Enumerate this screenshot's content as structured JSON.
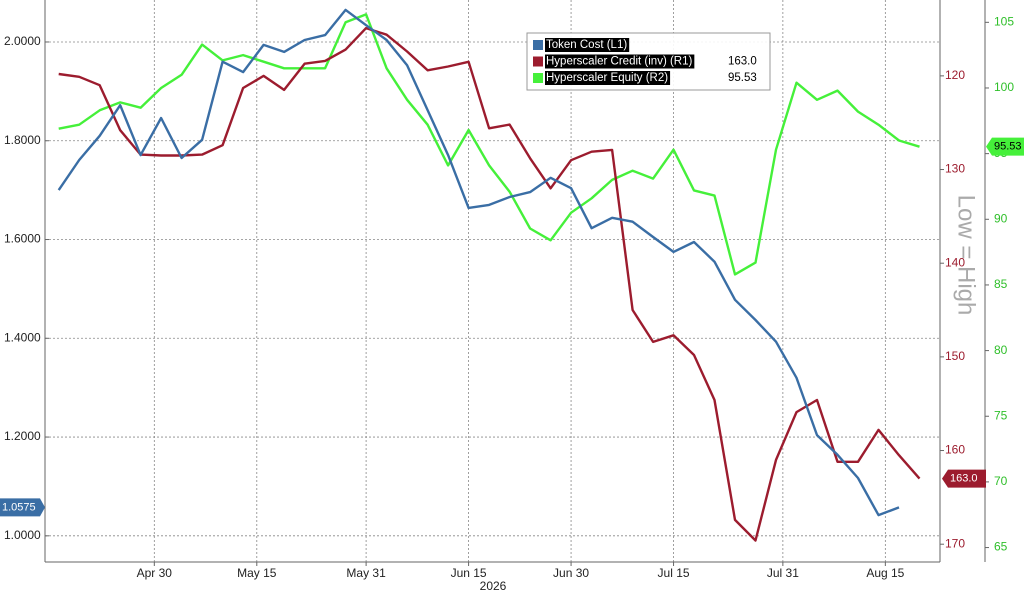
{
  "chart_data": {
    "type": "line",
    "xlabel": "2026",
    "y2_annotation": "Low = High",
    "x": [
      "2026-04-16",
      "2026-04-19",
      "2026-04-22",
      "2026-04-25",
      "2026-04-28",
      "2026-05-01",
      "2026-05-04",
      "2026-05-07",
      "2026-05-10",
      "2026-05-13",
      "2026-05-16",
      "2026-05-19",
      "2026-05-22",
      "2026-05-25",
      "2026-05-28",
      "2026-05-31",
      "2026-06-03",
      "2026-06-06",
      "2026-06-09",
      "2026-06-12",
      "2026-06-15",
      "2026-06-18",
      "2026-06-21",
      "2026-06-24",
      "2026-06-27",
      "2026-06-30",
      "2026-07-03",
      "2026-07-06",
      "2026-07-09",
      "2026-07-12",
      "2026-07-15",
      "2026-07-18",
      "2026-07-21",
      "2026-07-24",
      "2026-07-27",
      "2026-07-30",
      "2026-08-02",
      "2026-08-05",
      "2026-08-08",
      "2026-08-11",
      "2026-08-14",
      "2026-08-17",
      "2026-08-20"
    ],
    "xlim": [
      "2026-04-14",
      "2026-08-23"
    ],
    "xticks": [
      {
        "value": "2026-04-30",
        "label": "Apr 30"
      },
      {
        "value": "2026-05-15",
        "label": "May 15"
      },
      {
        "value": "2026-05-31",
        "label": "May 31"
      },
      {
        "value": "2026-06-15",
        "label": "Jun 15"
      },
      {
        "value": "2026-06-30",
        "label": "Jun 30"
      },
      {
        "value": "2026-07-15",
        "label": "Jul 15"
      },
      {
        "value": "2026-07-31",
        "label": "Jul 31"
      },
      {
        "value": "2026-08-15",
        "label": "Aug 15"
      }
    ],
    "ylim": [
      0.947,
      2.085
    ],
    "yticks": [
      {
        "value": 1.0,
        "label": "1.0000"
      },
      {
        "value": 1.2,
        "label": "1.2000"
      },
      {
        "value": 1.4,
        "label": "1.4000"
      },
      {
        "value": 1.6,
        "label": "1.6000"
      },
      {
        "value": 1.8,
        "label": "1.8000"
      },
      {
        "value": 2.0,
        "label": "2.0000"
      }
    ],
    "y2lim": [
      171.9,
      111.9
    ],
    "y2ticks": [
      120,
      130,
      140,
      150,
      160,
      170
    ],
    "y3lim": [
      63.9,
      106.7
    ],
    "y3ticks": [
      65,
      70,
      75,
      80,
      85,
      90,
      95,
      100,
      105
    ],
    "grid": true,
    "series": [
      {
        "name": "Token Cost (L1)",
        "color": "#3a6ea5",
        "axis": "y",
        "values": [
          1.7,
          1.761,
          1.81,
          1.872,
          1.771,
          1.846,
          1.765,
          1.802,
          1.96,
          1.939,
          1.994,
          1.98,
          2.004,
          2.014,
          2.065,
          2.034,
          2.004,
          1.953,
          1.862,
          1.771,
          1.664,
          1.67,
          1.686,
          1.696,
          1.725,
          1.704,
          1.623,
          1.644,
          1.636,
          1.605,
          1.575,
          1.595,
          1.555,
          1.478,
          1.437,
          1.393,
          1.32,
          1.204,
          1.164,
          1.117,
          1.042,
          1.0575,
          null
        ],
        "value_labels": [
          null,
          null,
          null,
          null,
          null,
          null,
          null,
          null,
          null,
          null,
          null,
          null,
          null,
          null,
          null,
          null,
          null,
          null,
          null,
          null,
          null,
          null,
          null,
          null,
          null,
          null,
          null,
          null,
          null,
          null,
          null,
          null,
          null,
          null,
          null,
          null,
          null,
          null,
          null,
          null,
          null,
          "1.0575",
          null
        ]
      },
      {
        "name": "Hyperscaler Credit (inv) (R1)",
        "color": "#9c1c2e",
        "axis": "y2",
        "values": [
          119.8,
          120.1,
          121.0,
          125.8,
          128.4,
          128.5,
          128.5,
          128.4,
          127.4,
          121.3,
          120.0,
          121.5,
          118.7,
          118.4,
          117.2,
          114.9,
          115.6,
          117.4,
          119.4,
          119.0,
          118.5,
          125.6,
          125.2,
          128.8,
          132.0,
          129.0,
          128.1,
          127.9,
          145.0,
          148.4,
          147.7,
          149.8,
          154.6,
          167.4,
          169.6,
          161.0,
          155.9,
          154.6,
          161.2,
          161.2,
          157.8,
          160.5,
          163.0
        ],
        "value_labels": [
          null,
          null,
          null,
          null,
          null,
          null,
          null,
          null,
          null,
          null,
          null,
          null,
          null,
          null,
          null,
          null,
          null,
          null,
          null,
          null,
          null,
          null,
          null,
          null,
          null,
          null,
          null,
          null,
          null,
          null,
          null,
          null,
          null,
          null,
          null,
          null,
          null,
          null,
          null,
          null,
          null,
          null,
          "163.0"
        ]
      },
      {
        "name": "Hyperscaler Equity (R2)",
        "color": "#45f03a",
        "axis": "y3",
        "values": [
          96.9,
          97.2,
          98.3,
          98.9,
          98.5,
          100.0,
          101.0,
          103.3,
          102.1,
          102.5,
          102.0,
          101.5,
          101.5,
          101.5,
          105.0,
          105.6,
          101.5,
          99.1,
          97.2,
          94.1,
          96.8,
          94.1,
          92.1,
          89.3,
          88.4,
          90.5,
          91.6,
          93.0,
          93.7,
          93.1,
          95.3,
          92.2,
          91.8,
          85.8,
          86.7,
          95.3,
          100.4,
          99.1,
          99.8,
          98.2,
          97.2,
          96.0,
          95.53
        ],
        "value_labels": [
          null,
          null,
          null,
          null,
          null,
          null,
          null,
          null,
          null,
          null,
          null,
          null,
          null,
          null,
          null,
          null,
          null,
          null,
          null,
          null,
          null,
          null,
          null,
          null,
          null,
          null,
          null,
          null,
          null,
          null,
          null,
          null,
          null,
          null,
          null,
          null,
          null,
          null,
          null,
          null,
          null,
          null,
          "95.53"
        ]
      }
    ]
  }
}
